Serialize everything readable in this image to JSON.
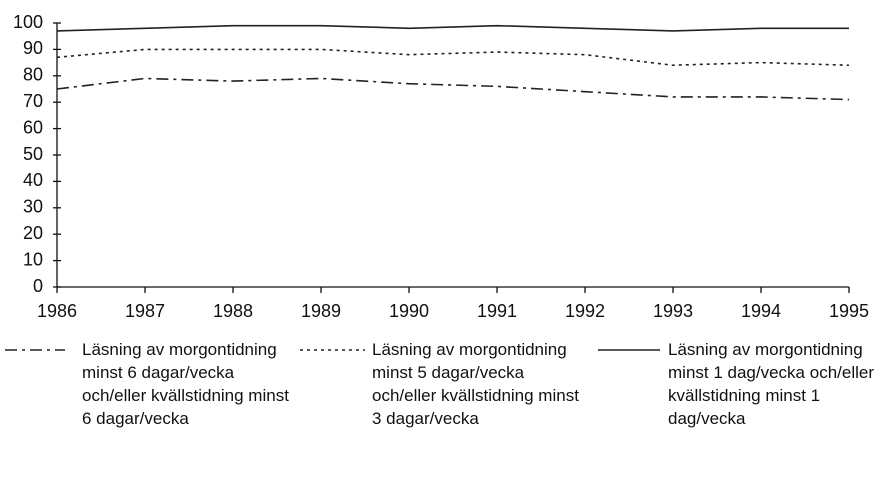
{
  "chart_data": {
    "type": "line",
    "x": [
      1986,
      1987,
      1988,
      1989,
      1990,
      1991,
      1992,
      1993,
      1994,
      1995
    ],
    "xlim": [
      1986,
      1995
    ],
    "xticks": [
      1986,
      1987,
      1988,
      1989,
      1990,
      1991,
      1992,
      1993,
      1994,
      1995
    ],
    "ylim": [
      0,
      100
    ],
    "yticks": [
      0,
      10,
      20,
      30,
      40,
      50,
      60,
      70,
      80,
      90,
      100
    ],
    "grid": false,
    "legend": "bottom",
    "series": [
      {
        "name": "Läsning av morgontidning minst 6 dagar/vecka och/eller kvällstidning minst 6 dagar/vecka",
        "color": "#222222",
        "style": "dashdot",
        "values": [
          75,
          79,
          78,
          79,
          77,
          76,
          74,
          72,
          72,
          71
        ]
      },
      {
        "name": "Läsning av morgontidning minst 5 dagar/vecka och/eller kvällstidning minst 3 dagar/vecka",
        "color": "#222222",
        "style": "dotted",
        "values": [
          87,
          90,
          90,
          90,
          88,
          89,
          88,
          84,
          85,
          84
        ]
      },
      {
        "name": "Läsning av morgontidning minst 1 dag/vecka och/eller kvällstidning minst 1 dag/vecka",
        "color": "#222222",
        "style": "solid",
        "values": [
          97,
          98,
          99,
          99,
          98,
          99,
          98,
          97,
          98,
          98
        ]
      }
    ]
  }
}
